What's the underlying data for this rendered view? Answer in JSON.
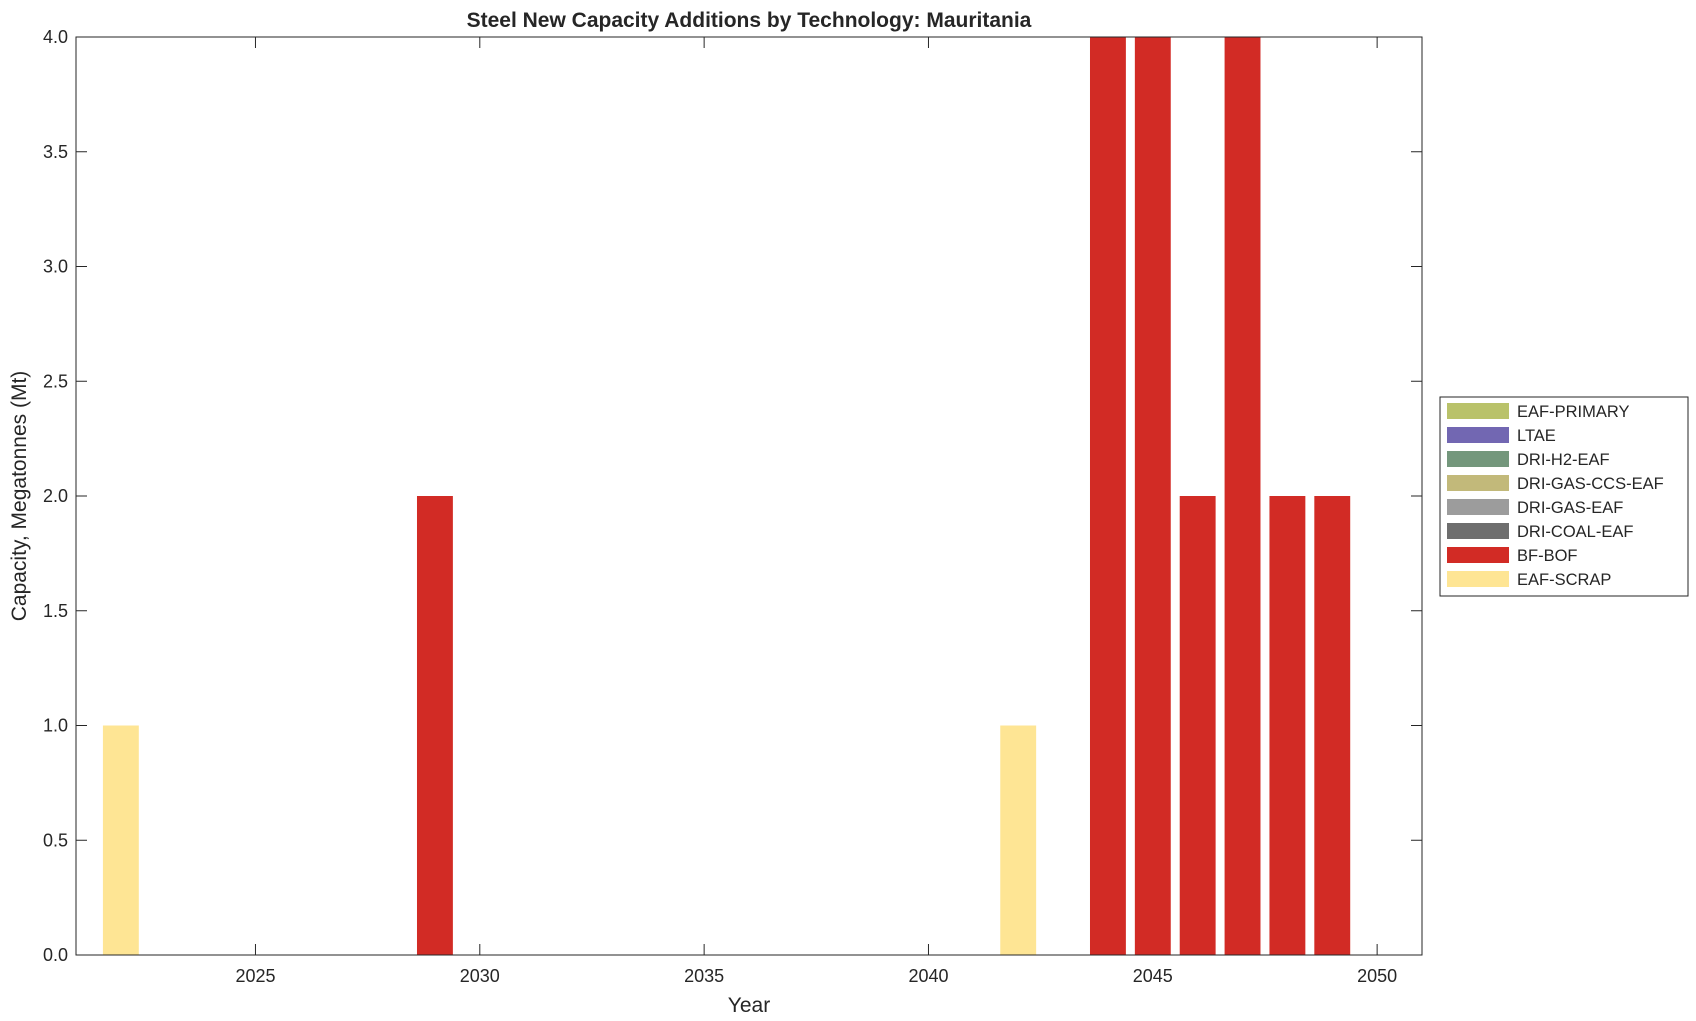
{
  "chart_data": {
    "type": "bar",
    "stacked": true,
    "title": "Steel New Capacity Additions by Technology: Mauritania",
    "xlabel": "Year",
    "ylabel": "Capacity, Megatonnes (Mt)",
    "xlim": [
      2021,
      2051
    ],
    "ylim": [
      0,
      4
    ],
    "xticks": [
      2025,
      2030,
      2035,
      2040,
      2045,
      2050
    ],
    "yticks": [
      "0.0",
      "0.5",
      "1.0",
      "1.5",
      "2.0",
      "2.5",
      "3.0",
      "3.5",
      "4.0"
    ],
    "grid": false,
    "legend_position": "right",
    "categories": [
      2022,
      2029,
      2042,
      2044,
      2045,
      2046,
      2047,
      2048,
      2049
    ],
    "series": [
      {
        "name": "EAF-PRIMARY",
        "color": "#b9c26a",
        "values": [
          0,
          0,
          0,
          0,
          0,
          0,
          0,
          0,
          0
        ]
      },
      {
        "name": "LTAE",
        "color": "#7267b2",
        "values": [
          0,
          0,
          0,
          0,
          0,
          0,
          0,
          0,
          0
        ]
      },
      {
        "name": "DRI-H2-EAF",
        "color": "#74977c",
        "values": [
          0,
          0,
          0,
          0,
          0,
          0,
          0,
          0,
          0
        ]
      },
      {
        "name": "DRI-GAS-CCS-EAF",
        "color": "#c2b97a",
        "values": [
          0,
          0,
          0,
          0,
          0,
          0,
          0,
          0,
          0
        ]
      },
      {
        "name": "DRI-GAS-EAF",
        "color": "#9c9c9c",
        "values": [
          0,
          0,
          0,
          0,
          0,
          0,
          0,
          0,
          0
        ]
      },
      {
        "name": "DRI-COAL-EAF",
        "color": "#6e6e6e",
        "values": [
          0,
          0,
          0,
          0,
          0,
          0,
          0,
          0,
          0
        ]
      },
      {
        "name": "BF-BOF",
        "color": "#d22b25",
        "values": [
          0,
          2,
          0,
          4,
          4,
          2,
          4,
          2,
          2
        ]
      },
      {
        "name": "EAF-SCRAP",
        "color": "#fee594",
        "values": [
          1,
          0,
          1,
          0,
          0,
          0,
          0,
          0,
          0
        ]
      }
    ]
  }
}
